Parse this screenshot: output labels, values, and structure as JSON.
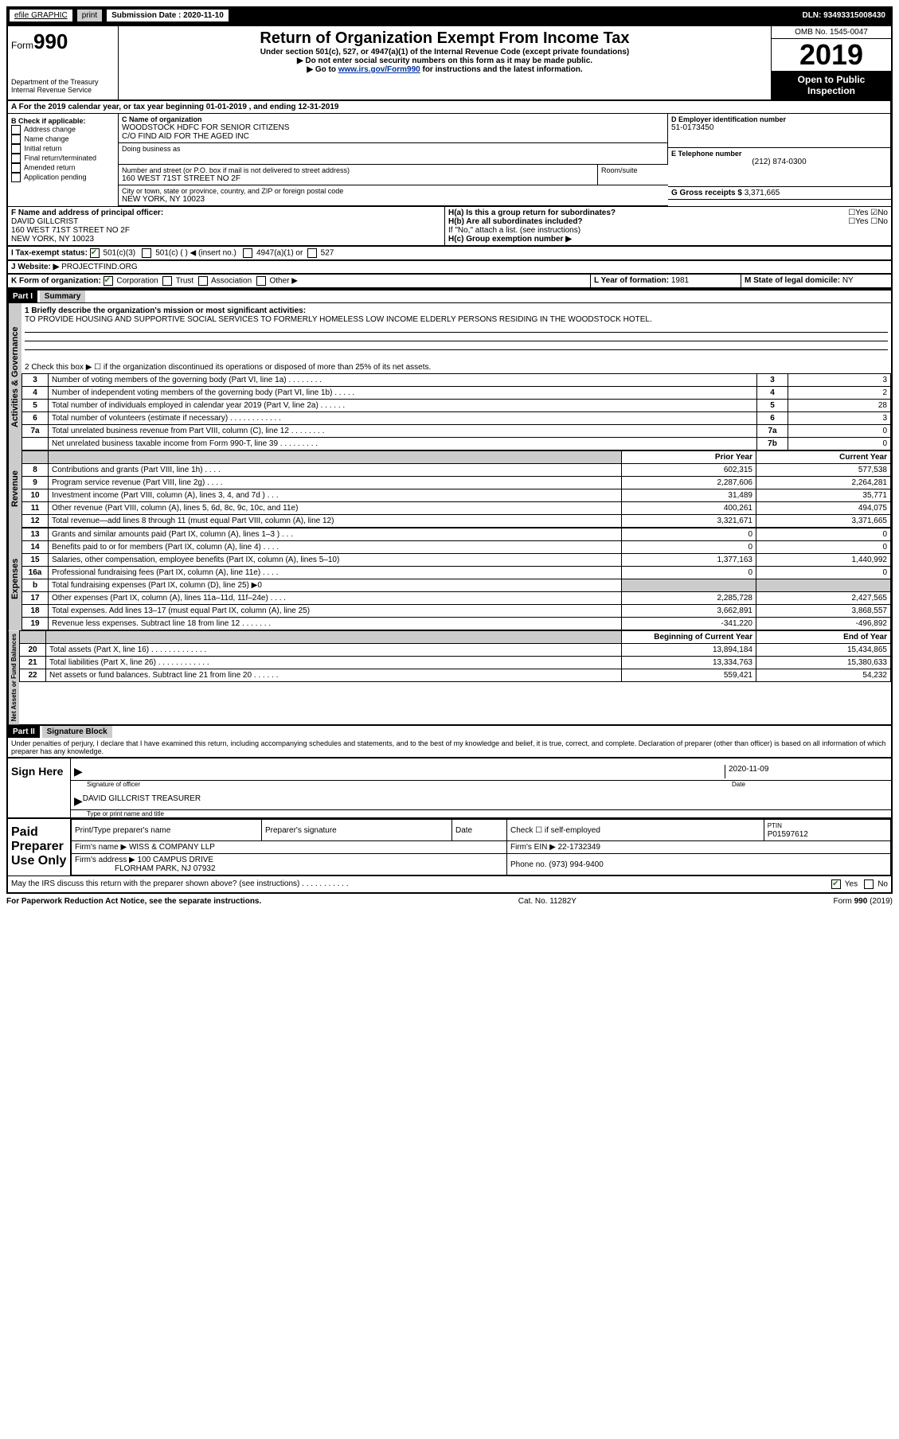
{
  "topbar": {
    "efile": "efile GRAPHIC",
    "print": "print",
    "sub_label": "Submission Date : 2020-11-10",
    "dln": "DLN: 93493315008430"
  },
  "header": {
    "form_prefix": "Form",
    "form_num": "990",
    "dept": "Department of the Treasury\nInternal Revenue Service",
    "title": "Return of Organization Exempt From Income Tax",
    "sub1": "Under section 501(c), 527, or 4947(a)(1) of the Internal Revenue Code (except private foundations)",
    "sub2": "▶ Do not enter social security numbers on this form as it may be made public.",
    "sub3a": "▶ Go to ",
    "sub3_link": "www.irs.gov/Form990",
    "sub3b": " for instructions and the latest information.",
    "omb": "OMB No. 1545-0047",
    "year": "2019",
    "open": "Open to Public Inspection"
  },
  "line_a": "A For the 2019 calendar year, or tax year beginning 01-01-2019    , and ending 12-31-2019",
  "section_b": {
    "title": "B Check if applicable:",
    "items": [
      "Address change",
      "Name change",
      "Initial return",
      "Final return/terminated",
      "Amended return",
      "Application pending"
    ]
  },
  "section_c": {
    "name_label": "C Name of organization",
    "name": "WOODSTOCK HDFC FOR SENIOR CITIZENS",
    "co": "C/O FIND AID FOR THE AGED INC",
    "dba_label": "Doing business as",
    "addr_label": "Number and street (or P.O. box if mail is not delivered to street address)",
    "room_label": "Room/suite",
    "addr": "160 WEST 71ST STREET NO 2F",
    "city_label": "City or town, state or province, country, and ZIP or foreign postal code",
    "city": "NEW YORK, NY  10023"
  },
  "section_d": {
    "label": "D Employer identification number",
    "value": "51-0173450"
  },
  "section_e": {
    "label": "E Telephone number",
    "value": "(212) 874-0300"
  },
  "section_g": {
    "label": "G Gross receipts $",
    "value": "3,371,665"
  },
  "section_f": {
    "label": "F Name and address of principal officer:",
    "name": "DAVID GILLCRIST",
    "addr": "160 WEST 71ST STREET NO 2F",
    "city": "NEW YORK, NY  10023"
  },
  "section_h": {
    "ha": "H(a)  Is this a group return for subordinates?",
    "hb": "H(b)  Are all subordinates included?",
    "hb_note": "If \"No,\" attach a list. (see instructions)",
    "hc": "H(c)  Group exemption number ▶"
  },
  "section_i": {
    "label": "I  Tax-exempt status:",
    "opts": [
      "501(c)(3)",
      "501(c) (  ) ◀ (insert no.)",
      "4947(a)(1) or",
      "527"
    ]
  },
  "section_j": {
    "label": "J  Website: ▶",
    "value": "PROJECTFIND.ORG"
  },
  "section_k": {
    "label": "K Form of organization:",
    "opts": [
      "Corporation",
      "Trust",
      "Association",
      "Other ▶"
    ]
  },
  "section_l": {
    "label": "L Year of formation:",
    "value": "1981"
  },
  "section_m": {
    "label": "M State of legal domicile:",
    "value": "NY"
  },
  "part1": {
    "header": "Part I",
    "title": "Summary",
    "mission_label": "1  Briefly describe the organization's mission or most significant activities:",
    "mission": "TO PROVIDE HOUSING AND SUPPORTIVE SOCIAL SERVICES TO FORMERLY HOMELESS LOW INCOME ELDERLY PERSONS RESIDING IN THE WOODSTOCK HOTEL.",
    "line2": "2   Check this box ▶ ☐  if the organization discontinued its operations or disposed of more than 25% of its net assets.",
    "vert_activities": "Activities & Governance",
    "vert_revenue": "Revenue",
    "vert_expenses": "Expenses",
    "vert_net": "Net Assets or Fund Balances",
    "rows_ag": [
      {
        "n": "3",
        "t": "Number of voting members of the governing body (Part VI, line 1a)  .    .    .    .    .    .    .    .",
        "c": "3",
        "v": "3"
      },
      {
        "n": "4",
        "t": "Number of independent voting members of the governing body (Part VI, line 1b)   .    .    .    .    .",
        "c": "4",
        "v": "2"
      },
      {
        "n": "5",
        "t": "Total number of individuals employed in calendar year 2019 (Part V, line 2a)   .    .    .    .    .    .",
        "c": "5",
        "v": "28"
      },
      {
        "n": "6",
        "t": "Total number of volunteers (estimate if necessary)    .    .    .    .    .    .    .    .    .    .    .    .",
        "c": "6",
        "v": "3"
      },
      {
        "n": "7a",
        "t": "Total unrelated business revenue from Part VIII, column (C), line 12   .    .    .    .    .    .    .    .",
        "c": "7a",
        "v": "0"
      },
      {
        "n": "",
        "t": "Net unrelated business taxable income from Form 990-T, line 39   .    .    .    .    .    .    .    .    .",
        "c": "7b",
        "v": "0"
      }
    ],
    "col_prior": "Prior Year",
    "col_current": "Current Year",
    "rows_rev": [
      {
        "n": "8",
        "t": "Contributions and grants (Part VIII, line 1h)    .    .    .    .",
        "p": "602,315",
        "c": "577,538"
      },
      {
        "n": "9",
        "t": "Program service revenue (Part VIII, line 2g)    .    .    .    .",
        "p": "2,287,606",
        "c": "2,264,281"
      },
      {
        "n": "10",
        "t": "Investment income (Part VIII, column (A), lines 3, 4, and 7d )    .    .    .",
        "p": "31,489",
        "c": "35,771"
      },
      {
        "n": "11",
        "t": "Other revenue (Part VIII, column (A), lines 5, 6d, 8c, 9c, 10c, and 11e)",
        "p": "400,261",
        "c": "494,075"
      },
      {
        "n": "12",
        "t": "Total revenue—add lines 8 through 11 (must equal Part VIII, column (A), line 12)",
        "p": "3,321,671",
        "c": "3,371,665"
      }
    ],
    "rows_exp": [
      {
        "n": "13",
        "t": "Grants and similar amounts paid (Part IX, column (A), lines 1–3 )   .    .    .",
        "p": "0",
        "c": "0"
      },
      {
        "n": "14",
        "t": "Benefits paid to or for members (Part IX, column (A), line 4)    .    .    .    .",
        "p": "0",
        "c": "0"
      },
      {
        "n": "15",
        "t": "Salaries, other compensation, employee benefits (Part IX, column (A), lines 5–10)",
        "p": "1,377,163",
        "c": "1,440,992"
      },
      {
        "n": "16a",
        "t": "Professional fundraising fees (Part IX, column (A), line 11e)    .    .    .    .",
        "p": "0",
        "c": "0"
      },
      {
        "n": "b",
        "t": "Total fundraising expenses (Part IX, column (D), line 25) ▶0",
        "p": "",
        "c": "",
        "shade": true
      },
      {
        "n": "17",
        "t": "Other expenses (Part IX, column (A), lines 11a–11d, 11f–24e)   .    .    .    .",
        "p": "2,285,728",
        "c": "2,427,565"
      },
      {
        "n": "18",
        "t": "Total expenses. Add lines 13–17 (must equal Part IX, column (A), line 25)",
        "p": "3,662,891",
        "c": "3,868,557"
      },
      {
        "n": "19",
        "t": "Revenue less expenses. Subtract line 18 from line 12   .    .    .    .    .    .    .",
        "p": "-341,220",
        "c": "-496,892"
      }
    ],
    "col_begin": "Beginning of Current Year",
    "col_end": "End of Year",
    "rows_net": [
      {
        "n": "20",
        "t": "Total assets (Part X, line 16)   .    .    .    .    .    .    .    .    .    .    .    .    .",
        "p": "13,894,184",
        "c": "15,434,865"
      },
      {
        "n": "21",
        "t": "Total liabilities (Part X, line 26)   .    .    .    .    .    .    .    .    .    .    .    .",
        "p": "13,334,763",
        "c": "15,380,633"
      },
      {
        "n": "22",
        "t": "Net assets or fund balances. Subtract line 21 from line 20   .    .    .    .    .    .",
        "p": "559,421",
        "c": "54,232"
      }
    ]
  },
  "part2": {
    "header": "Part II",
    "title": "Signature Block",
    "decl": "Under penalties of perjury, I declare that I have examined this return, including accompanying schedules and statements, and to the best of my knowledge and belief, it is true, correct, and complete. Declaration of preparer (other than officer) is based on all information of which preparer has any knowledge.",
    "sign_here": "Sign Here",
    "sig_officer": "Signature of officer",
    "date": "Date",
    "date_val": "2020-11-09",
    "name_title": "DAVID GILLCRIST  TREASURER",
    "name_label": "Type or print name and title",
    "paid": "Paid Preparer Use Only",
    "prep_name_label": "Print/Type preparer's name",
    "prep_sig_label": "Preparer's signature",
    "date_label": "Date",
    "check_if": "Check ☐ if self-employed",
    "ptin_label": "PTIN",
    "ptin": "P01597612",
    "firm_name_label": "Firm's name    ▶",
    "firm_name": "WISS & COMPANY LLP",
    "firm_ein_label": "Firm's EIN ▶",
    "firm_ein": "22-1732349",
    "firm_addr_label": "Firm's address ▶",
    "firm_addr1": "100 CAMPUS DRIVE",
    "firm_addr2": "FLORHAM PARK, NJ  07932",
    "phone_label": "Phone no.",
    "phone": "(973) 994-9400",
    "discuss": "May the IRS discuss this return with the preparer shown above? (see instructions)    .    .    .    .    .    .    .    .    .    .    .",
    "yes": "Yes",
    "no": "No"
  },
  "footer": {
    "left": "For Paperwork Reduction Act Notice, see the separate instructions.",
    "mid": "Cat. No. 11282Y",
    "right": "Form 990 (2019)"
  }
}
